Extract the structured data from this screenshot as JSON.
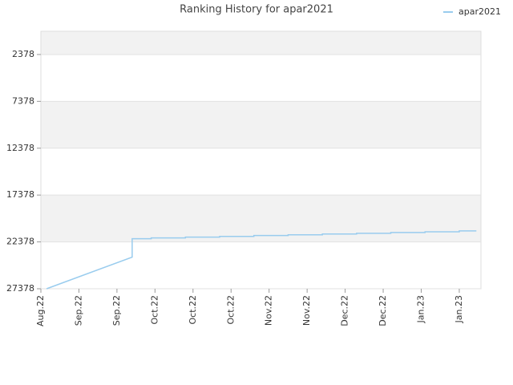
{
  "chart_data": {
    "type": "line",
    "title": "Ranking History for apar2021",
    "x": [
      0.15,
      2.4,
      2.4,
      2.9,
      2.9,
      3.8,
      3.8,
      4.7,
      4.7,
      5.6,
      5.6,
      6.5,
      6.5,
      7.4,
      7.4,
      8.3,
      8.3,
      9.2,
      9.2,
      10.1,
      10.1,
      11.0,
      11.0,
      11.45
    ],
    "series": [
      {
        "name": "apar2021",
        "color": "#99ccee",
        "values": [
          27378,
          24005,
          22036,
          22036,
          21950,
          21950,
          21870,
          21870,
          21790,
          21790,
          21700,
          21700,
          21620,
          21620,
          21540,
          21540,
          21460,
          21460,
          21380,
          21380,
          21300,
          21300,
          21200,
          21200
        ]
      }
    ],
    "xlim": [
      0,
      11.57
    ],
    "xticks": [
      {
        "value": 0,
        "label": "Aug.22"
      },
      {
        "value": 1,
        "label": "Sep.22"
      },
      {
        "value": 2,
        "label": "Sep.22"
      },
      {
        "value": 3,
        "label": "Oct.22"
      },
      {
        "value": 4,
        "label": "Oct.22"
      },
      {
        "value": 5,
        "label": "Oct.22"
      },
      {
        "value": 6,
        "label": "Nov.22"
      },
      {
        "value": 7,
        "label": "Nov.22"
      },
      {
        "value": 8,
        "label": "Dec.22"
      },
      {
        "value": 9,
        "label": "Dec.22"
      },
      {
        "value": 10,
        "label": "Jan.23"
      },
      {
        "value": 11,
        "label": "Jan.23"
      }
    ],
    "ylim": [
      27378,
      -100
    ],
    "yticks": [
      2378,
      7378,
      12378,
      17378,
      22378,
      27378
    ],
    "grid": true,
    "band_color": "#f2f2f2",
    "legend": "top-right"
  }
}
